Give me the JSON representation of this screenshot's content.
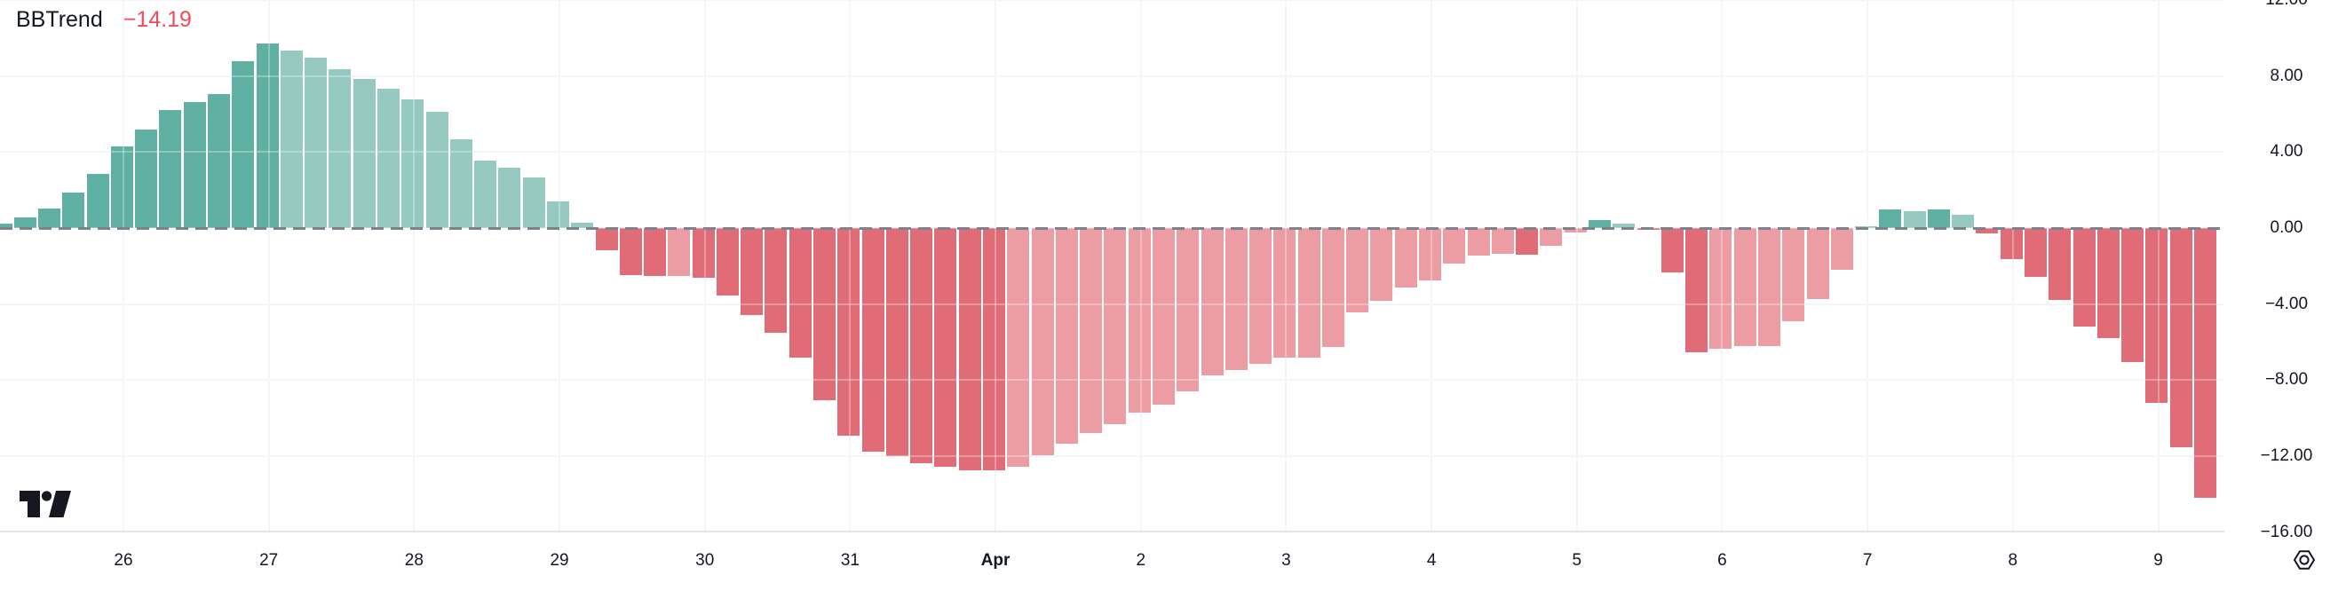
{
  "legend": {
    "indicator_name": "BBTrend",
    "value_text": "−14.19"
  },
  "icons": {
    "logo": "tradingview-logo",
    "settings": "settings-hexagon-icon"
  },
  "colors": {
    "text": "#131722",
    "legend_value_red": "#F24B57",
    "grid": "#EFF1F4",
    "zero_line": "#7E828C",
    "separator": "#E1E4EB",
    "logo": "#15191F"
  },
  "chart_data": {
    "type": "bar",
    "title": "BBTrend",
    "current_value": -14.19,
    "ylim": [
      -16,
      12
    ],
    "grid": true,
    "bars_per_day": 6,
    "y_axis": {
      "tick_values": [
        12,
        8,
        4,
        0,
        -4,
        -8,
        -12,
        -16
      ],
      "tick_labels": [
        "12.00",
        "8.00",
        "4.00",
        "0.00",
        "−4.00",
        "−8.00",
        "−12.00",
        "−16.00"
      ]
    },
    "x_axis": {
      "day_labels": [
        {
          "text": "26",
          "bold": false
        },
        {
          "text": "27",
          "bold": false
        },
        {
          "text": "28",
          "bold": false
        },
        {
          "text": "29",
          "bold": false
        },
        {
          "text": "30",
          "bold": false
        },
        {
          "text": "31",
          "bold": false
        },
        {
          "text": "Apr",
          "bold": true
        },
        {
          "text": "2",
          "bold": false
        },
        {
          "text": "3",
          "bold": false
        },
        {
          "text": "4",
          "bold": false
        },
        {
          "text": "5",
          "bold": false
        },
        {
          "text": "6",
          "bold": false
        },
        {
          "text": "7",
          "bold": false
        },
        {
          "text": "8",
          "bold": false
        },
        {
          "text": "9",
          "bold": false
        }
      ]
    },
    "tone_colors": {
      "up_strong": "#5FAFA2",
      "up_weak": "#96C9C0",
      "down_strong": "#E06C77",
      "down_weak": "#EC9DA4"
    },
    "series": [
      {
        "v": 0.25,
        "tone": "up_strong"
      },
      {
        "v": 0.57,
        "tone": "up_strong"
      },
      {
        "v": 1.01,
        "tone": "up_strong"
      },
      {
        "v": 1.87,
        "tone": "up_strong"
      },
      {
        "v": 2.83,
        "tone": "up_strong"
      },
      {
        "v": 4.28,
        "tone": "up_strong"
      },
      {
        "v": 5.17,
        "tone": "up_strong"
      },
      {
        "v": 6.22,
        "tone": "up_strong"
      },
      {
        "v": 6.61,
        "tone": "up_strong"
      },
      {
        "v": 7.03,
        "tone": "up_strong"
      },
      {
        "v": 8.77,
        "tone": "up_strong"
      },
      {
        "v": 9.7,
        "tone": "up_strong"
      },
      {
        "v": 9.33,
        "tone": "up_weak"
      },
      {
        "v": 8.96,
        "tone": "up_weak"
      },
      {
        "v": 8.35,
        "tone": "up_weak"
      },
      {
        "v": 7.84,
        "tone": "up_weak"
      },
      {
        "v": 7.33,
        "tone": "up_weak"
      },
      {
        "v": 6.75,
        "tone": "up_weak"
      },
      {
        "v": 6.11,
        "tone": "up_weak"
      },
      {
        "v": 4.68,
        "tone": "up_weak"
      },
      {
        "v": 3.55,
        "tone": "up_weak"
      },
      {
        "v": 3.16,
        "tone": "up_weak"
      },
      {
        "v": 2.66,
        "tone": "up_weak"
      },
      {
        "v": 1.41,
        "tone": "up_weak"
      },
      {
        "v": 0.28,
        "tone": "up_weak"
      },
      {
        "v": -1.15,
        "tone": "down_strong"
      },
      {
        "v": -2.47,
        "tone": "down_strong"
      },
      {
        "v": -2.52,
        "tone": "down_strong"
      },
      {
        "v": -2.52,
        "tone": "down_weak"
      },
      {
        "v": -2.61,
        "tone": "down_strong"
      },
      {
        "v": -3.53,
        "tone": "down_strong"
      },
      {
        "v": -4.57,
        "tone": "down_strong"
      },
      {
        "v": -5.51,
        "tone": "down_strong"
      },
      {
        "v": -6.8,
        "tone": "down_strong"
      },
      {
        "v": -9.05,
        "tone": "down_strong"
      },
      {
        "v": -10.92,
        "tone": "down_strong"
      },
      {
        "v": -11.75,
        "tone": "down_strong"
      },
      {
        "v": -12.0,
        "tone": "down_strong"
      },
      {
        "v": -12.35,
        "tone": "down_strong"
      },
      {
        "v": -12.55,
        "tone": "down_strong"
      },
      {
        "v": -12.74,
        "tone": "down_strong"
      },
      {
        "v": -12.74,
        "tone": "down_strong"
      },
      {
        "v": -12.54,
        "tone": "down_weak"
      },
      {
        "v": -11.95,
        "tone": "down_weak"
      },
      {
        "v": -11.34,
        "tone": "down_weak"
      },
      {
        "v": -10.8,
        "tone": "down_weak"
      },
      {
        "v": -10.3,
        "tone": "down_weak"
      },
      {
        "v": -9.7,
        "tone": "down_weak"
      },
      {
        "v": -9.3,
        "tone": "down_weak"
      },
      {
        "v": -8.6,
        "tone": "down_weak"
      },
      {
        "v": -7.75,
        "tone": "down_weak"
      },
      {
        "v": -7.48,
        "tone": "down_weak"
      },
      {
        "v": -7.12,
        "tone": "down_weak"
      },
      {
        "v": -6.83,
        "tone": "down_weak"
      },
      {
        "v": -6.8,
        "tone": "down_weak"
      },
      {
        "v": -6.25,
        "tone": "down_weak"
      },
      {
        "v": -4.45,
        "tone": "down_weak"
      },
      {
        "v": -3.84,
        "tone": "down_weak"
      },
      {
        "v": -3.14,
        "tone": "down_weak"
      },
      {
        "v": -2.75,
        "tone": "down_weak"
      },
      {
        "v": -1.85,
        "tone": "down_weak"
      },
      {
        "v": -1.43,
        "tone": "down_weak"
      },
      {
        "v": -1.34,
        "tone": "down_weak"
      },
      {
        "v": -1.39,
        "tone": "down_strong"
      },
      {
        "v": -0.92,
        "tone": "down_weak"
      },
      {
        "v": -0.25,
        "tone": "down_weak"
      },
      {
        "v": 0.41,
        "tone": "up_strong"
      },
      {
        "v": 0.22,
        "tone": "up_weak"
      },
      {
        "v": -0.09,
        "tone": "down_strong"
      },
      {
        "v": -2.32,
        "tone": "down_strong"
      },
      {
        "v": -6.52,
        "tone": "down_strong"
      },
      {
        "v": -6.36,
        "tone": "down_weak"
      },
      {
        "v": -6.21,
        "tone": "down_weak"
      },
      {
        "v": -6.21,
        "tone": "down_weak"
      },
      {
        "v": -4.89,
        "tone": "down_weak"
      },
      {
        "v": -3.72,
        "tone": "down_weak"
      },
      {
        "v": -2.19,
        "tone": "down_weak"
      },
      {
        "v": 0.05,
        "tone": "up_weak"
      },
      {
        "v": 0.99,
        "tone": "up_strong"
      },
      {
        "v": 0.9,
        "tone": "up_weak"
      },
      {
        "v": 0.99,
        "tone": "up_strong"
      },
      {
        "v": 0.69,
        "tone": "up_weak"
      },
      {
        "v": -0.29,
        "tone": "down_strong"
      },
      {
        "v": -1.62,
        "tone": "down_strong"
      },
      {
        "v": -2.58,
        "tone": "down_strong"
      },
      {
        "v": -3.77,
        "tone": "down_strong"
      },
      {
        "v": -5.17,
        "tone": "down_strong"
      },
      {
        "v": -5.77,
        "tone": "down_strong"
      },
      {
        "v": -7.03,
        "tone": "down_strong"
      },
      {
        "v": -9.19,
        "tone": "down_strong"
      },
      {
        "v": -11.54,
        "tone": "down_strong"
      },
      {
        "v": -14.19,
        "tone": "down_strong"
      }
    ]
  }
}
